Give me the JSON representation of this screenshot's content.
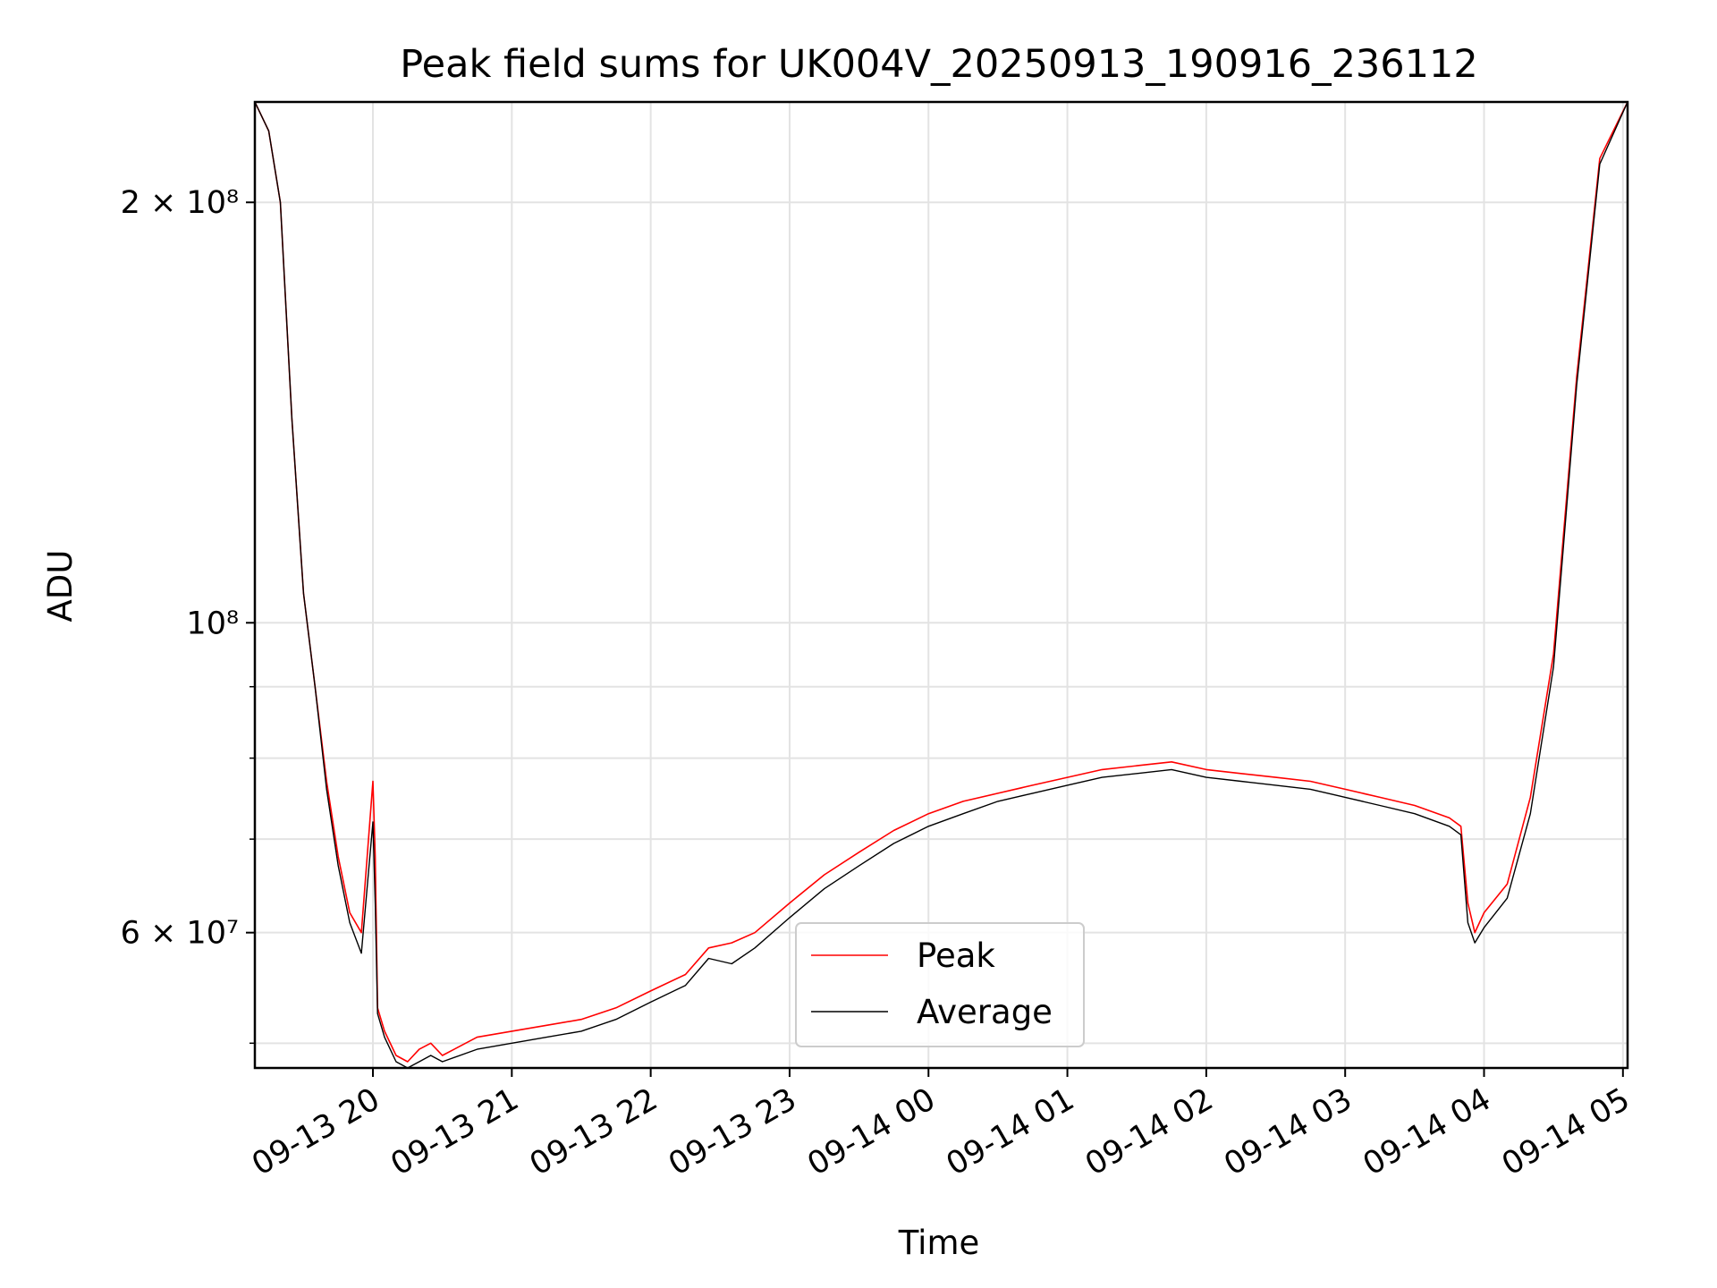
{
  "chart_data": {
    "type": "line",
    "title": "Peak field sums for UK004V_20250913_190916_236112",
    "xlabel": "Time",
    "ylabel": "ADU",
    "y_scale": "log",
    "ylim": [
      48000000,
      236000000
    ],
    "xlim": [
      "2025-09-13 19:09",
      "2025-09-14 05:02"
    ],
    "grid": true,
    "legend_placement": "lower center",
    "x_ticks": [
      "09-13 20",
      "09-13 21",
      "09-13 22",
      "09-13 23",
      "09-14 00",
      "09-14 01",
      "09-14 02",
      "09-14 03",
      "09-14 04",
      "09-14 05"
    ],
    "x_tick_times": [
      "2025-09-13 20:00",
      "2025-09-13 21:00",
      "2025-09-13 22:00",
      "2025-09-13 23:00",
      "2025-09-14 00:00",
      "2025-09-14 01:00",
      "2025-09-14 02:00",
      "2025-09-14 03:00",
      "2025-09-14 04:00",
      "2025-09-14 05:00"
    ],
    "y_major_ticks": [
      {
        "value": 60000000,
        "label": "6 × 10⁷"
      },
      {
        "value": 100000000,
        "label": "10⁸"
      },
      {
        "value": 200000000,
        "label": "2 × 10⁸"
      }
    ],
    "y_minor_ticks": [
      50000000,
      70000000,
      80000000,
      90000000
    ],
    "series": [
      {
        "name": "Peak",
        "color": "#ff0000",
        "x": [
          "2025-09-13 19:09",
          "2025-09-13 19:15",
          "2025-09-13 19:20",
          "2025-09-13 19:25",
          "2025-09-13 19:30",
          "2025-09-13 19:35",
          "2025-09-13 19:40",
          "2025-09-13 19:45",
          "2025-09-13 19:50",
          "2025-09-13 19:55",
          "2025-09-13 20:00",
          "2025-09-13 20:01",
          "2025-09-13 20:02",
          "2025-09-13 20:05",
          "2025-09-13 20:10",
          "2025-09-13 20:15",
          "2025-09-13 20:20",
          "2025-09-13 20:25",
          "2025-09-13 20:30",
          "2025-09-13 20:45",
          "2025-09-13 21:00",
          "2025-09-13 21:15",
          "2025-09-13 21:30",
          "2025-09-13 21:45",
          "2025-09-13 22:00",
          "2025-09-13 22:15",
          "2025-09-13 22:25",
          "2025-09-13 22:35",
          "2025-09-13 22:45",
          "2025-09-13 23:00",
          "2025-09-13 23:15",
          "2025-09-13 23:30",
          "2025-09-13 23:45",
          "2025-09-14 00:00",
          "2025-09-14 00:15",
          "2025-09-14 00:30",
          "2025-09-14 00:45",
          "2025-09-14 01:00",
          "2025-09-14 01:15",
          "2025-09-14 01:30",
          "2025-09-14 01:45",
          "2025-09-14 02:00",
          "2025-09-14 02:15",
          "2025-09-14 02:30",
          "2025-09-14 02:45",
          "2025-09-14 03:00",
          "2025-09-14 03:15",
          "2025-09-14 03:30",
          "2025-09-14 03:45",
          "2025-09-14 03:50",
          "2025-09-14 03:53",
          "2025-09-14 03:56",
          "2025-09-14 04:00",
          "2025-09-14 04:10",
          "2025-09-14 04:20",
          "2025-09-14 04:30",
          "2025-09-14 04:40",
          "2025-09-14 04:50",
          "2025-09-14 05:02"
        ],
        "values": [
          236000000,
          225000000,
          200000000,
          140000000,
          105000000,
          90000000,
          77000000,
          68000000,
          62000000,
          60000000,
          77000000,
          68000000,
          53000000,
          51000000,
          49000000,
          48500000,
          49500000,
          50000000,
          49000000,
          50500000,
          51000000,
          51500000,
          52000000,
          53000000,
          54500000,
          56000000,
          58500000,
          59000000,
          60000000,
          63000000,
          66000000,
          68500000,
          71000000,
          73000000,
          74500000,
          75500000,
          76500000,
          77500000,
          78500000,
          79000000,
          79500000,
          78500000,
          78000000,
          77500000,
          77000000,
          76000000,
          75000000,
          74000000,
          72500000,
          71500000,
          63000000,
          60000000,
          62000000,
          65000000,
          75000000,
          95000000,
          150000000,
          215000000,
          236000000
        ]
      },
      {
        "name": "Average",
        "color": "#000000",
        "x": [
          "2025-09-13 19:09",
          "2025-09-13 19:15",
          "2025-09-13 19:20",
          "2025-09-13 19:25",
          "2025-09-13 19:30",
          "2025-09-13 19:35",
          "2025-09-13 19:40",
          "2025-09-13 19:45",
          "2025-09-13 19:50",
          "2025-09-13 19:55",
          "2025-09-13 20:00",
          "2025-09-13 20:01",
          "2025-09-13 20:02",
          "2025-09-13 20:05",
          "2025-09-13 20:10",
          "2025-09-13 20:15",
          "2025-09-13 20:20",
          "2025-09-13 20:25",
          "2025-09-13 20:30",
          "2025-09-13 20:45",
          "2025-09-13 21:00",
          "2025-09-13 21:15",
          "2025-09-13 21:30",
          "2025-09-13 21:45",
          "2025-09-13 22:00",
          "2025-09-13 22:15",
          "2025-09-13 22:25",
          "2025-09-13 22:35",
          "2025-09-13 22:45",
          "2025-09-13 23:00",
          "2025-09-13 23:15",
          "2025-09-13 23:30",
          "2025-09-13 23:45",
          "2025-09-14 00:00",
          "2025-09-14 00:15",
          "2025-09-14 00:30",
          "2025-09-14 00:45",
          "2025-09-14 01:00",
          "2025-09-14 01:15",
          "2025-09-14 01:30",
          "2025-09-14 01:45",
          "2025-09-14 02:00",
          "2025-09-14 02:15",
          "2025-09-14 02:30",
          "2025-09-14 02:45",
          "2025-09-14 03:00",
          "2025-09-14 03:15",
          "2025-09-14 03:30",
          "2025-09-14 03:45",
          "2025-09-14 03:50",
          "2025-09-14 03:53",
          "2025-09-14 03:56",
          "2025-09-14 04:00",
          "2025-09-14 04:10",
          "2025-09-14 04:20",
          "2025-09-14 04:30",
          "2025-09-14 04:40",
          "2025-09-14 04:50",
          "2025-09-14 05:02"
        ],
        "values": [
          236000000,
          225000000,
          200000000,
          140000000,
          105000000,
          90000000,
          76000000,
          67000000,
          61000000,
          58000000,
          72000000,
          63000000,
          52500000,
          50500000,
          48500000,
          48000000,
          48500000,
          49000000,
          48500000,
          49500000,
          50000000,
          50500000,
          51000000,
          52000000,
          53500000,
          55000000,
          57500000,
          57000000,
          58500000,
          61500000,
          64500000,
          67000000,
          69500000,
          71500000,
          73000000,
          74500000,
          75500000,
          76500000,
          77500000,
          78000000,
          78500000,
          77500000,
          77000000,
          76500000,
          76000000,
          75000000,
          74000000,
          73000000,
          71500000,
          70500000,
          61000000,
          59000000,
          60500000,
          63500000,
          73000000,
          93000000,
          148000000,
          213000000,
          236000000
        ]
      }
    ]
  }
}
